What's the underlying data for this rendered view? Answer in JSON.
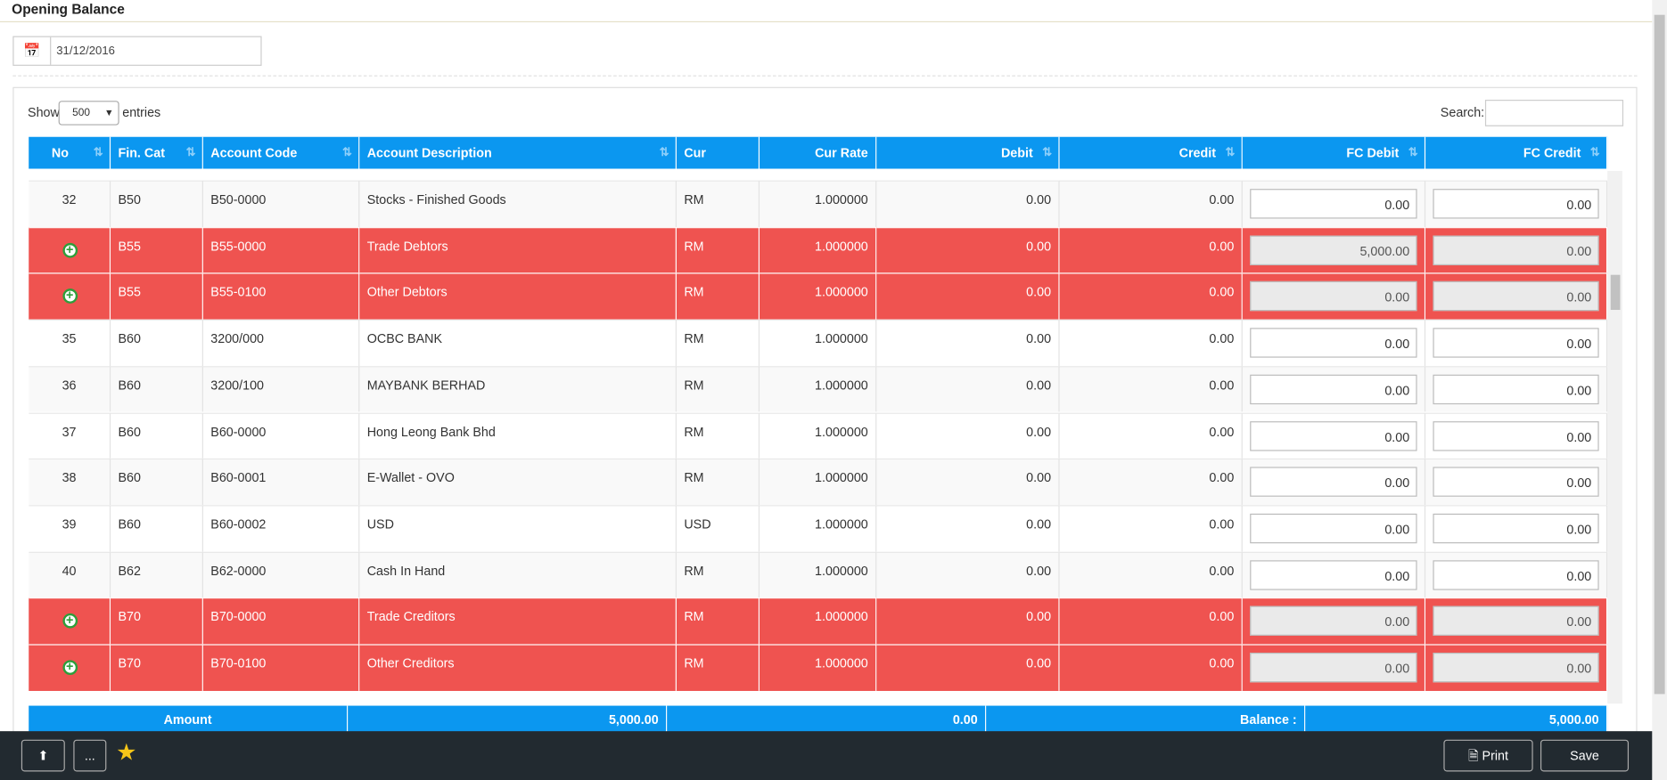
{
  "header": {
    "title": "Opening Balance"
  },
  "date": "31/12/2016",
  "controls": {
    "show_label": "Show",
    "page_size": "500",
    "entries_label": "entries",
    "search_label": "Search:"
  },
  "table": {
    "columns": [
      "No",
      "Fin. Cat",
      "Account Code",
      "Account Description",
      "Cur",
      "Cur Rate",
      "Debit",
      "Credit",
      "FC Debit",
      "FC Credit"
    ],
    "rows": [
      {
        "no": "32",
        "fin_cat": "B50",
        "code": "B50-0000",
        "description": "Stocks - Finished Goods",
        "cur": "RM",
        "cur_rate": "1.000000",
        "debit": "0.00",
        "credit": "0.00",
        "fc_debit": "0.00",
        "fc_credit": "0.00",
        "highlight": false
      },
      {
        "fin_cat": "B55",
        "code": "B55-0000",
        "description": "Trade Debtors",
        "cur": "RM",
        "cur_rate": "1.000000",
        "debit": "0.00",
        "credit": "0.00",
        "fc_debit": "5,000.00",
        "fc_credit": "0.00",
        "highlight": true
      },
      {
        "fin_cat": "B55",
        "code": "B55-0100",
        "description": "Other Debtors",
        "cur": "RM",
        "cur_rate": "1.000000",
        "debit": "0.00",
        "credit": "0.00",
        "fc_debit": "0.00",
        "fc_credit": "0.00",
        "highlight": true
      },
      {
        "no": "35",
        "fin_cat": "B60",
        "code": "3200/000",
        "description": "OCBC BANK",
        "cur": "RM",
        "cur_rate": "1.000000",
        "debit": "0.00",
        "credit": "0.00",
        "fc_debit": "0.00",
        "fc_credit": "0.00",
        "highlight": false
      },
      {
        "no": "36",
        "fin_cat": "B60",
        "code": "3200/100",
        "description": "MAYBANK BERHAD",
        "cur": "RM",
        "cur_rate": "1.000000",
        "debit": "0.00",
        "credit": "0.00",
        "fc_debit": "0.00",
        "fc_credit": "0.00",
        "highlight": false
      },
      {
        "no": "37",
        "fin_cat": "B60",
        "code": "B60-0000",
        "description": "Hong Leong Bank Bhd",
        "cur": "RM",
        "cur_rate": "1.000000",
        "debit": "0.00",
        "credit": "0.00",
        "fc_debit": "0.00",
        "fc_credit": "0.00",
        "highlight": false
      },
      {
        "no": "38",
        "fin_cat": "B60",
        "code": "B60-0001",
        "description": "E-Wallet - OVO",
        "cur": "RM",
        "cur_rate": "1.000000",
        "debit": "0.00",
        "credit": "0.00",
        "fc_debit": "0.00",
        "fc_credit": "0.00",
        "highlight": false
      },
      {
        "no": "39",
        "fin_cat": "B60",
        "code": "B60-0002",
        "description": "USD",
        "cur": "USD",
        "cur_rate": "1.000000",
        "debit": "0.00",
        "credit": "0.00",
        "fc_debit": "0.00",
        "fc_credit": "0.00",
        "highlight": false
      },
      {
        "no": "40",
        "fin_cat": "B62",
        "code": "B62-0000",
        "description": "Cash In Hand",
        "cur": "RM",
        "cur_rate": "1.000000",
        "debit": "0.00",
        "credit": "0.00",
        "fc_debit": "0.00",
        "fc_credit": "0.00",
        "highlight": false
      },
      {
        "fin_cat": "B70",
        "code": "B70-0000",
        "description": "Trade Creditors",
        "cur": "RM",
        "cur_rate": "1.000000",
        "debit": "0.00",
        "credit": "0.00",
        "fc_debit": "0.00",
        "fc_credit": "0.00",
        "highlight": true
      },
      {
        "fin_cat": "B70",
        "code": "B70-0100",
        "description": "Other Creditors",
        "cur": "RM",
        "cur_rate": "1.000000",
        "debit": "0.00",
        "credit": "0.00",
        "fc_debit": "0.00",
        "fc_credit": "0.00",
        "highlight": true
      }
    ]
  },
  "footer": {
    "amount_label": "Amount",
    "debit_total": "5,000.00",
    "credit_total": "0.00",
    "balance_label": "Balance :",
    "balance": "5,000.00"
  },
  "buttons": {
    "more": "...",
    "print": "Print",
    "save": "Save"
  }
}
